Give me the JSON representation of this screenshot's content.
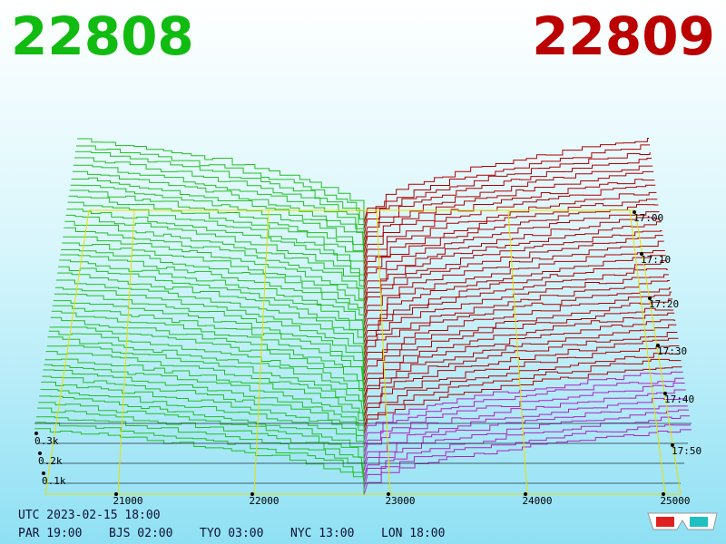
{
  "header": {
    "bid": "22808",
    "ask": "22809"
  },
  "axis": {
    "price_ticks": [
      "21000",
      "22000",
      "23000",
      "24000",
      "25000"
    ],
    "depth_ticks": [
      "0.3k",
      "0.2k",
      "0.1k"
    ],
    "time_ticks": [
      "17:00",
      "17:10",
      "17:20",
      "17:30",
      "17:40",
      "17:50"
    ]
  },
  "footer": {
    "utc": "UTC 2023-02-15 18:00",
    "zones": [
      "PAR 19:00",
      "BJS 02:00",
      "TYO 03:00",
      "NYC 13:00",
      "LON 18:00"
    ]
  }
}
